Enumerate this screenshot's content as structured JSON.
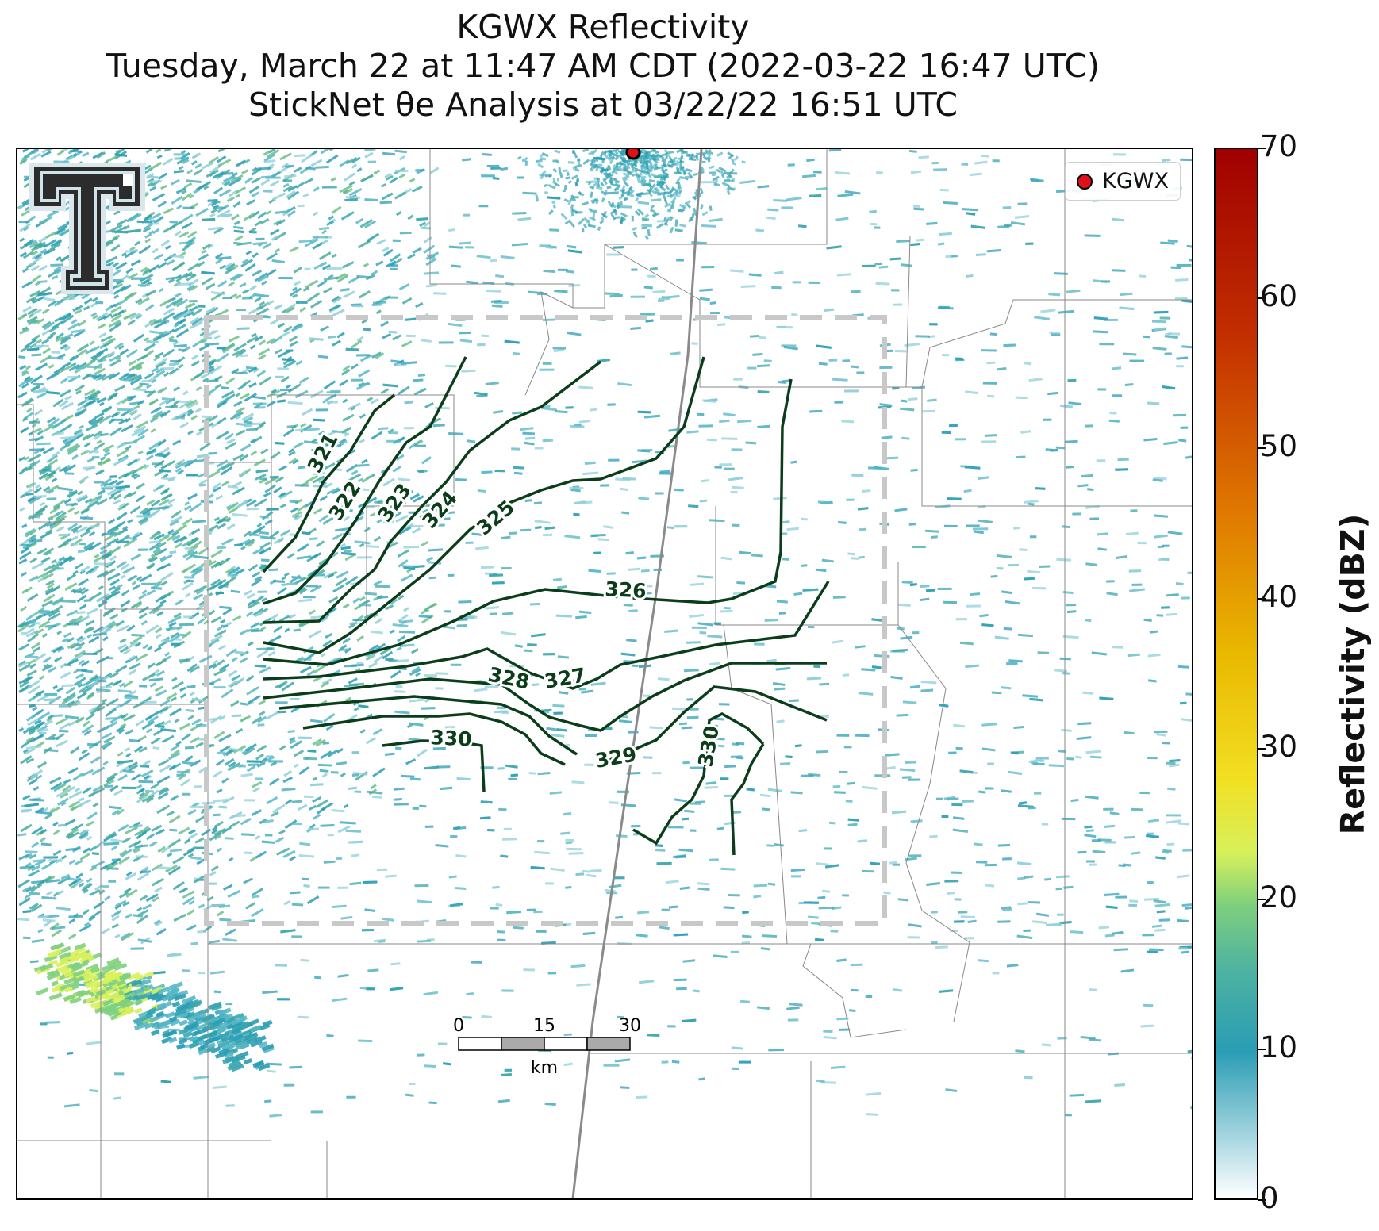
{
  "title": {
    "line1": "KGWX Reflectivity",
    "line2": "Tuesday, March 22 at 11:47 AM CDT (2022-03-22 16:47 UTC)",
    "line3": "StickNet θe Analysis at 03/22/22 16:51 UTC"
  },
  "legend": {
    "label": "KGWX",
    "marker_color": "#e0101a"
  },
  "colorbar": {
    "label": "Reflectivity (dBZ)",
    "ticks": [
      "0",
      "10",
      "20",
      "30",
      "40",
      "50",
      "60",
      "70"
    ]
  },
  "scale_bar": {
    "ticks": [
      "0",
      "15",
      "30"
    ],
    "unit": "km"
  },
  "contours": {
    "color": "#0b3d1a",
    "labels": [
      "321",
      "322",
      "323",
      "324",
      "325",
      "326",
      "327",
      "328",
      "329",
      "330",
      "330"
    ]
  },
  "colors": {
    "radar_low": "#2a9db5",
    "radar_mid": "#7fd07c",
    "radar_high": "#d8f15a",
    "analysis_box": "#c8c8c8",
    "county_lines": "#888888"
  }
}
